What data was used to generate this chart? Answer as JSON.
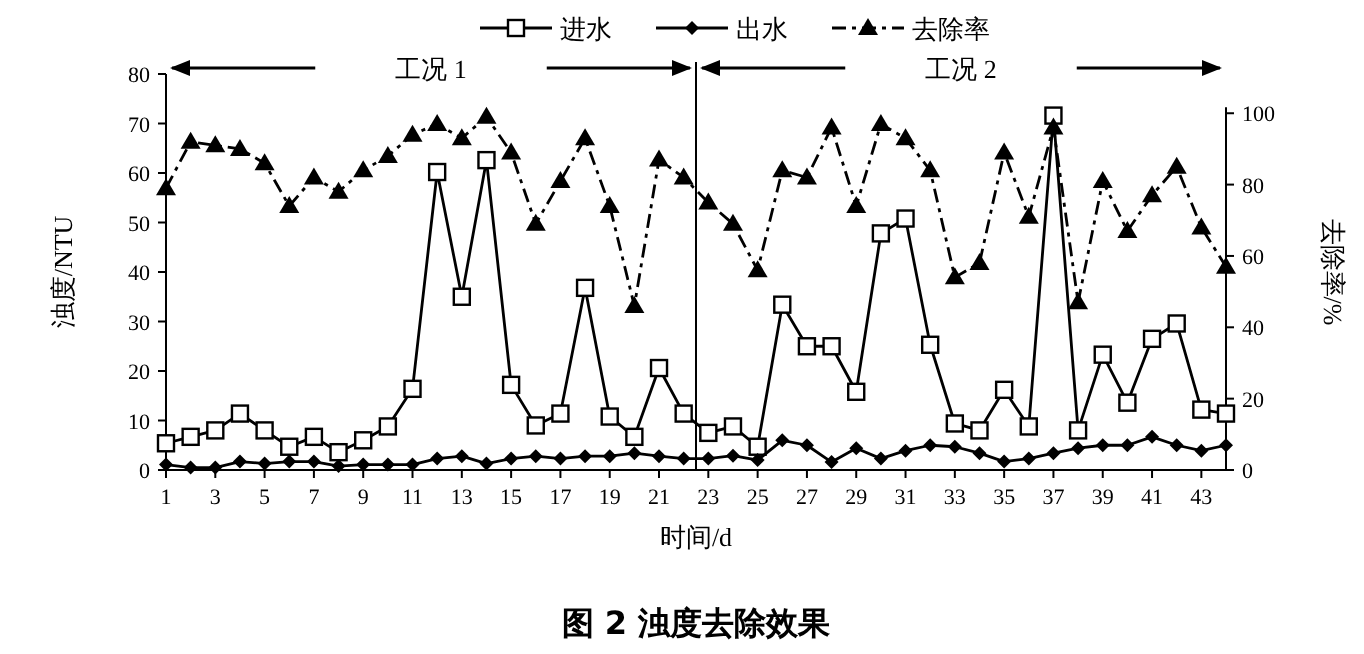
{
  "chart_data": {
    "type": "line",
    "title": "图 2  浊度去除效果",
    "xlabel": "时间/d",
    "ylabel": "浊度/NTU",
    "y2label": "去除率/%",
    "x": [
      1,
      2,
      3,
      4,
      5,
      6,
      7,
      8,
      9,
      10,
      11,
      12,
      13,
      14,
      15,
      16,
      17,
      18,
      19,
      20,
      21,
      22,
      23,
      24,
      25,
      26,
      27,
      28,
      29,
      30,
      31,
      32,
      33,
      34,
      35,
      36,
      37,
      38,
      39,
      40,
      41,
      42,
      43,
      44
    ],
    "xlim": [
      1,
      44
    ],
    "xticks": [
      1,
      3,
      5,
      7,
      9,
      11,
      13,
      15,
      17,
      19,
      21,
      23,
      25,
      27,
      29,
      31,
      33,
      35,
      37,
      39,
      41,
      43
    ],
    "ylim": [
      0,
      80
    ],
    "yticks": [
      0,
      10,
      20,
      30,
      40,
      50,
      60,
      70,
      80
    ],
    "y2lim": [
      0,
      111
    ],
    "y2ticks": [
      0,
      20,
      40,
      60,
      80,
      100
    ],
    "grid": false,
    "legend": "top",
    "series": [
      {
        "name": "进水",
        "color": "#000000",
        "marker": "square",
        "line_style": "solid",
        "values": [
          5.4,
          6.7,
          8,
          11.4,
          8,
          4.7,
          6.7,
          3.6,
          6,
          8.8,
          16.4,
          60.2,
          35,
          62.6,
          17.2,
          9,
          11.4,
          36.8,
          10.8,
          6.7,
          20.6,
          11.4,
          7.5,
          8.8,
          4.7,
          33.4,
          25,
          25,
          15.8,
          47.8,
          50.8,
          25.3,
          9.4,
          8,
          16.2,
          8.8,
          71.6,
          8,
          23.3,
          13.6,
          26.5,
          29.6,
          12.2,
          11.4
        ]
      },
      {
        "name": "出水",
        "color": "#000000",
        "marker": "diamond",
        "line_style": "solid",
        "values": [
          1.1,
          0.5,
          0.5,
          1.7,
          1.3,
          1.7,
          1.7,
          0.8,
          1.1,
          1.1,
          1.1,
          2.3,
          2.8,
          1.3,
          2.3,
          2.8,
          2.3,
          2.8,
          2.8,
          3.4,
          2.8,
          2.3,
          2.3,
          2.9,
          2,
          6,
          5,
          1.6,
          4.4,
          2.3,
          3.9,
          5,
          4.7,
          3.4,
          1.7,
          2.3,
          3.4,
          4.4,
          5,
          5,
          6.7,
          5,
          3.9,
          5
        ]
      },
      {
        "name": "去除率",
        "color": "#000000",
        "marker": "triangle",
        "line_style": "dashed",
        "axis": "y2",
        "values": [
          79,
          92,
          91,
          90,
          86,
          74,
          82,
          78,
          84,
          88,
          94,
          97,
          93,
          99,
          89,
          69,
          81,
          93,
          74,
          46,
          87,
          82,
          75,
          69,
          56,
          84,
          82,
          96,
          74,
          97,
          93,
          84,
          54,
          58,
          89,
          71,
          96,
          47,
          81,
          67,
          77,
          85,
          68,
          57
        ]
      }
    ],
    "ref_lines": [
      {
        "axis": "x",
        "value": 22.5,
        "color": "#000000",
        "line_style": "solid"
      }
    ],
    "annotations": [
      "工况 1",
      "工况 2"
    ]
  }
}
